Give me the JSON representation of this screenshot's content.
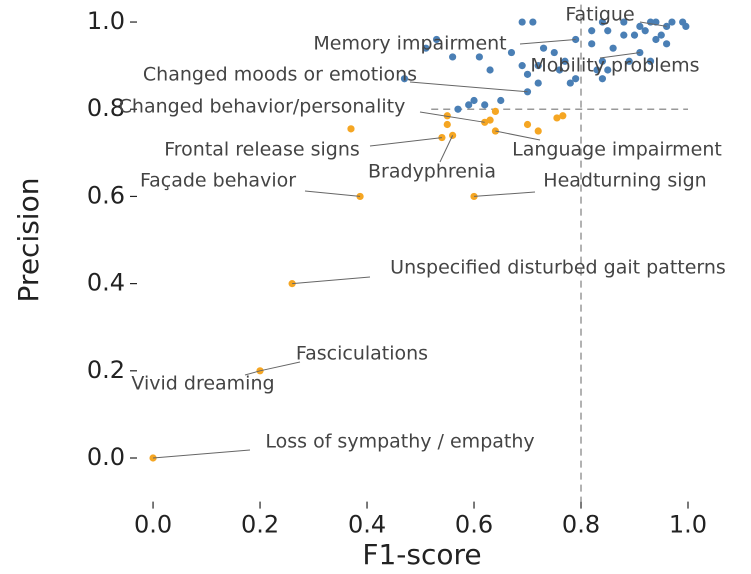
{
  "chart_data": {
    "type": "scatter",
    "x_label": "F1-score",
    "y_label": "Precision",
    "xlim": [
      -0.03,
      1.0
    ],
    "ylim": [
      -0.1,
      1.04
    ],
    "xticks": [
      {
        "value": 0,
        "label": "0.0"
      },
      0.2,
      0.4,
      0.6,
      0.8,
      {
        "value": 1,
        "label": "1.0"
      }
    ],
    "yticks": [
      {
        "value": 0,
        "label": "0.0"
      },
      0.2,
      0.4,
      0.6,
      0.8,
      {
        "value": 1,
        "label": "1.0"
      }
    ],
    "reference_lines": [
      {
        "orientation": "vertical",
        "value": 0.8,
        "color": "#999999"
      },
      {
        "orientation": "horizontal",
        "value": 0.8,
        "from": 0.52,
        "color": "#999999"
      }
    ],
    "series": [
      {
        "color": "#4a7fb5",
        "x": [
          0.69,
          0.71,
          0.84,
          0.88,
          0.93,
          0.94,
          0.97,
          0.99,
          0.91,
          0.96,
          0.996,
          0.82,
          0.85,
          0.92,
          0.95,
          0.88,
          0.9,
          0.79,
          0.94,
          0.96,
          0.53,
          0.51,
          0.82,
          0.73,
          0.67,
          0.75,
          0.86,
          0.91,
          0.56,
          0.61,
          0.89,
          0.93,
          0.69,
          0.72,
          0.77,
          0.84,
          0.63,
          0.76,
          0.83,
          0.7,
          0.79,
          0.84,
          0.85,
          0.72,
          0.78,
          0.47,
          0.7,
          0.6,
          0.59,
          0.62,
          0.65,
          0.57
        ],
        "y": [
          1.0,
          1.0,
          1.0,
          1.0,
          1.0,
          1.0,
          1.0,
          1.0,
          0.99,
          0.99,
          0.99,
          0.98,
          0.98,
          0.98,
          0.97,
          0.97,
          0.97,
          0.96,
          0.96,
          0.95,
          0.96,
          0.94,
          0.95,
          0.94,
          0.93,
          0.93,
          0.94,
          0.93,
          0.92,
          0.92,
          0.91,
          0.91,
          0.9,
          0.9,
          0.91,
          0.91,
          0.89,
          0.89,
          0.89,
          0.88,
          0.87,
          0.87,
          0.89,
          0.86,
          0.86,
          0.87,
          0.84,
          0.82,
          0.81,
          0.81,
          0.82,
          0.8
        ]
      },
      {
        "color": "#f5a623",
        "x": [
          0.37,
          0.55,
          0.55,
          0.54,
          0.56,
          0.64,
          0.63,
          0.62,
          0.64,
          0.7,
          0.72,
          0.755,
          0.766,
          0.387,
          0.6,
          0.26,
          0.2,
          0.0
        ],
        "y": [
          0.755,
          0.785,
          0.765,
          0.735,
          0.74,
          0.795,
          0.775,
          0.77,
          0.75,
          0.765,
          0.75,
          0.78,
          0.785,
          0.6,
          0.6,
          0.4,
          0.2,
          0.0
        ]
      }
    ],
    "annotations": [
      {
        "text": "Fatigue",
        "x": 0.96,
        "y": 0.99
      },
      {
        "text": "Memory impairment",
        "x": 0.79,
        "y": 0.96
      },
      {
        "text": "Mobility problems",
        "x": 0.91,
        "y": 0.93
      },
      {
        "text": "Changed moods or emotions",
        "x": 0.7,
        "y": 0.84
      },
      {
        "text": "Changed behavior/personality",
        "x": 0.62,
        "y": 0.77
      },
      {
        "text": "Frontal release signs",
        "x": 0.54,
        "y": 0.735
      },
      {
        "text": "Bradyphrenia",
        "x": 0.56,
        "y": 0.74
      },
      {
        "text": "Language impairment",
        "x": 0.64,
        "y": 0.75
      },
      {
        "text": "Façade behavior",
        "x": 0.387,
        "y": 0.6
      },
      {
        "text": "Headturning sign",
        "x": 0.6,
        "y": 0.6
      },
      {
        "text": "Unspecified disturbed gait patterns",
        "x": 0.26,
        "y": 0.4
      },
      {
        "text": "Fasciculations",
        "x": 0.2,
        "y": 0.2
      },
      {
        "text": "Vivid dreaming",
        "x": 0.2,
        "y": 0.2
      },
      {
        "text": "Loss of sympathy / empathy",
        "x": 0.0,
        "y": 0.0
      }
    ]
  }
}
